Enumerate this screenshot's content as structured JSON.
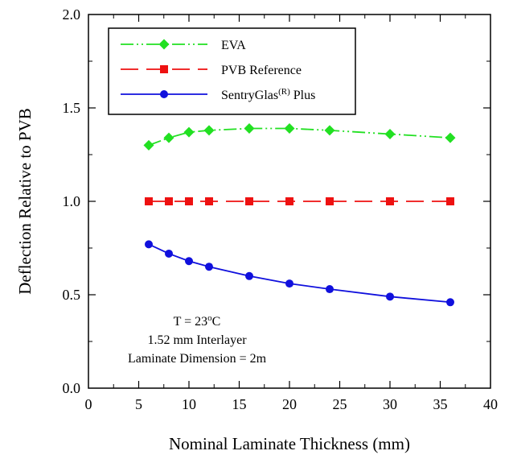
{
  "chart_data": {
    "type": "line",
    "xlabel": "Nominal Laminate Thickness (mm)",
    "ylabel": "Deflection Relative to PVB",
    "xlim": [
      0,
      40
    ],
    "ylim": [
      0.0,
      2.0
    ],
    "xticks": [
      "0",
      "5",
      "10",
      "15",
      "20",
      "25",
      "30",
      "35",
      "40"
    ],
    "yticks": [
      "0.0",
      "0.5",
      "1.0",
      "1.5",
      "2.0"
    ],
    "grid": false,
    "legend_position": "top-left",
    "x": [
      6,
      8,
      10,
      12,
      16,
      20,
      24,
      30,
      36
    ],
    "series": [
      {
        "name": "EVA",
        "legend_main": "EVA",
        "legend_sup": "",
        "legend_tail": "",
        "color": "#22e022",
        "marker": "diamond",
        "linestyle": "dash-dot-dot",
        "values": [
          1.3,
          1.34,
          1.37,
          1.38,
          1.39,
          1.39,
          1.38,
          1.36,
          1.34
        ]
      },
      {
        "name": "PVB Reference",
        "legend_main": "PVB Reference",
        "legend_sup": "",
        "legend_tail": "",
        "color": "#ee1111",
        "marker": "square",
        "linestyle": "dashed",
        "values": [
          1.0,
          1.0,
          1.0,
          1.0,
          1.0,
          1.0,
          1.0,
          1.0,
          1.0
        ]
      },
      {
        "name": "SentryGlas(R) Plus",
        "legend_main": "SentryGlas",
        "legend_sup": "(R)",
        "legend_tail": " Plus",
        "color": "#1010dd",
        "marker": "circle",
        "linestyle": "solid",
        "values": [
          0.77,
          0.72,
          0.68,
          0.65,
          0.6,
          0.56,
          0.53,
          0.49,
          0.46
        ]
      }
    ],
    "annotations": {
      "temp_prefix": "T = 23",
      "temp_sup": "o",
      "temp_suffix": "C",
      "interlayer": "1.52 mm Interlayer",
      "dimension": "Laminate Dimension = 2m"
    }
  }
}
